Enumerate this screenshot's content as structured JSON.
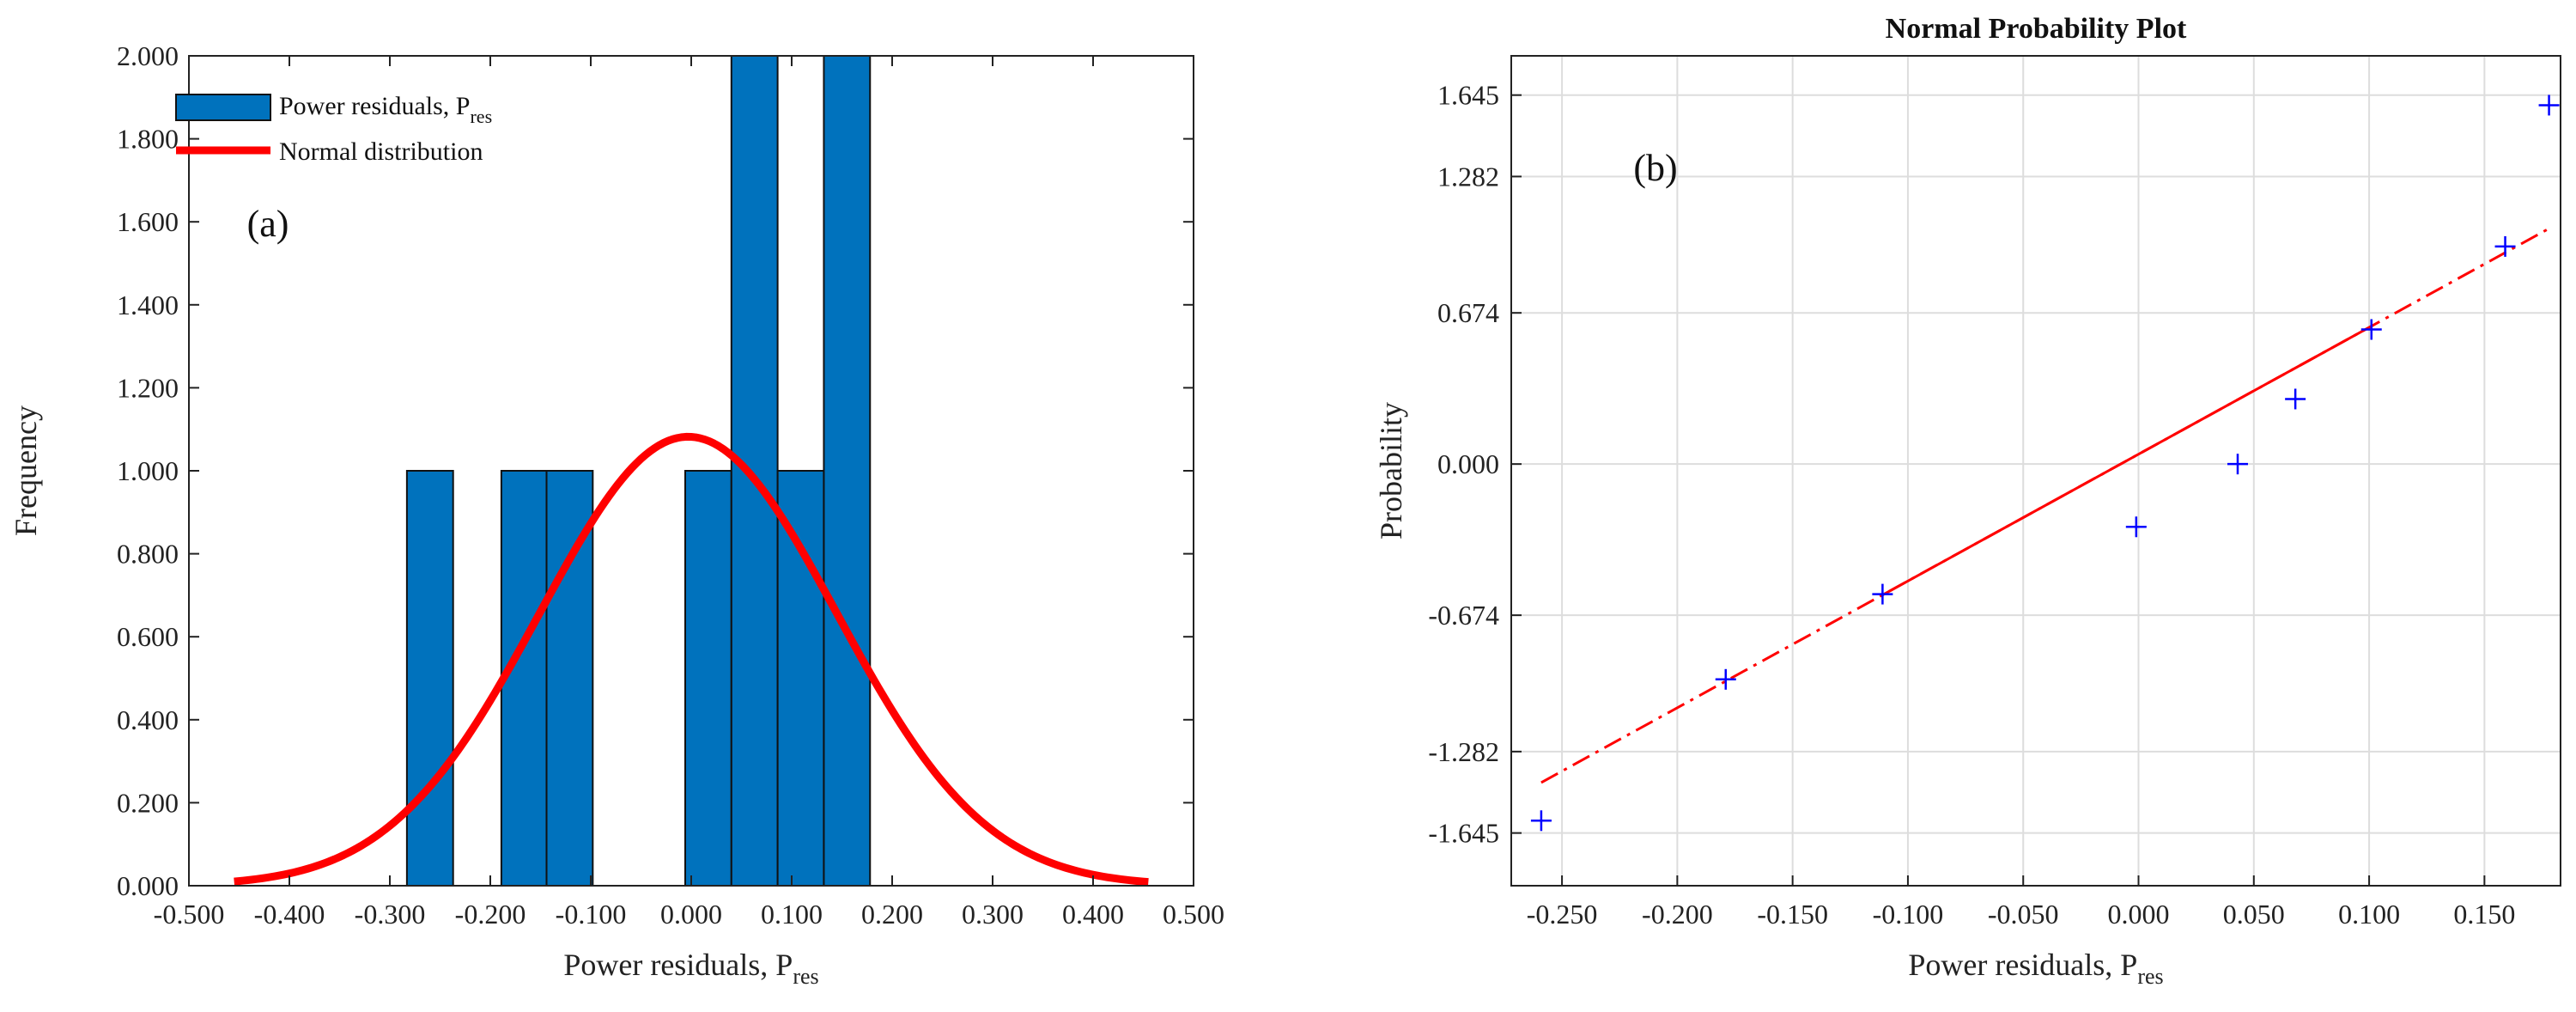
{
  "chart_data": [
    {
      "type": "bar",
      "panel_label": "(a)",
      "title": "",
      "xlabel": "Power residuals, P",
      "xlabel_sub": "res",
      "ylabel": "Frequency",
      "xlim": [
        -0.5,
        0.5
      ],
      "ylim": [
        0,
        2
      ],
      "xticks": [
        -0.5,
        -0.4,
        -0.3,
        -0.2,
        -0.1,
        0.0,
        0.1,
        0.2,
        0.3,
        0.4,
        0.5
      ],
      "xtick_labels": [
        "-0.500",
        "-0.400",
        "-0.300",
        "-0.200",
        "-0.100",
        "0.000",
        "0.100",
        "0.200",
        "0.300",
        "0.400",
        "0.500"
      ],
      "yticks": [
        0,
        0.2,
        0.4,
        0.6,
        0.8,
        1.0,
        1.2,
        1.4,
        1.6,
        1.8,
        2.0
      ],
      "ytick_labels": [
        "0.000",
        "0.200",
        "0.400",
        "0.600",
        "0.800",
        "1.000",
        "1.200",
        "1.400",
        "1.600",
        "1.800",
        "2.000"
      ],
      "legend_position": "top-left",
      "series": [
        {
          "name": "Power residuals, P",
          "name_sub": "res",
          "kind": "histogram",
          "color": "#0072BD",
          "bins": [
            {
              "x0": -0.283,
              "x1": -0.237,
              "count": 1
            },
            {
              "x0": -0.189,
              "x1": -0.144,
              "count": 1
            },
            {
              "x0": -0.144,
              "x1": -0.098,
              "count": 1
            },
            {
              "x0": -0.006,
              "x1": 0.04,
              "count": 1
            },
            {
              "x0": 0.04,
              "x1": 0.086,
              "count": 2
            },
            {
              "x0": 0.086,
              "x1": 0.132,
              "count": 1
            },
            {
              "x0": 0.132,
              "x1": 0.178,
              "count": 2
            }
          ]
        },
        {
          "name": "Normal distribution",
          "kind": "curve",
          "color": "#FF0000",
          "mean": -0.003,
          "sigma": 0.148,
          "scale": 1.082,
          "x_range": [
            -0.455,
            0.455
          ]
        }
      ]
    },
    {
      "type": "scatter",
      "panel_label": "(b)",
      "title": "Normal Probability Plot",
      "xlabel": "Power residuals, P",
      "xlabel_sub": "res",
      "ylabel": "Probability",
      "xlim": [
        -0.272,
        0.183
      ],
      "ylim": [
        -1.88,
        1.82
      ],
      "xticks": [
        -0.25,
        -0.2,
        -0.15,
        -0.1,
        -0.05,
        0.0,
        0.05,
        0.1,
        0.15
      ],
      "xtick_labels": [
        "-0.250",
        "-0.200",
        "-0.150",
        "-0.100",
        "-0.050",
        "0.000",
        "0.050",
        "0.100",
        "0.150"
      ],
      "yticks": [
        -1.645,
        -1.282,
        -0.674,
        0.0,
        0.674,
        1.282,
        1.645
      ],
      "ytick_labels": [
        "-1.645",
        "-1.282",
        "-0.674",
        "0.000",
        "0.674",
        "1.282",
        "1.645"
      ],
      "grid": true,
      "points_color": "#0000FF",
      "line_color": "#FF0000",
      "points": [
        {
          "x": -0.259,
          "y": -1.59
        },
        {
          "x": -0.179,
          "y": -0.96
        },
        {
          "x": -0.111,
          "y": -0.58
        },
        {
          "x": -0.001,
          "y": -0.28
        },
        {
          "x": 0.043,
          "y": 0.0
        },
        {
          "x": 0.068,
          "y": 0.29
        },
        {
          "x": 0.101,
          "y": 0.6
        },
        {
          "x": 0.159,
          "y": 0.97
        },
        {
          "x": 0.178,
          "y": 1.6
        }
      ],
      "fit_line": {
        "solid_range": [
          -0.111,
          0.101
        ],
        "dashed_range": [
          -0.259,
          0.178
        ],
        "y_at_x": [
          [
            -0.259,
            -1.42
          ],
          [
            0.178,
            1.05
          ]
        ]
      }
    }
  ]
}
